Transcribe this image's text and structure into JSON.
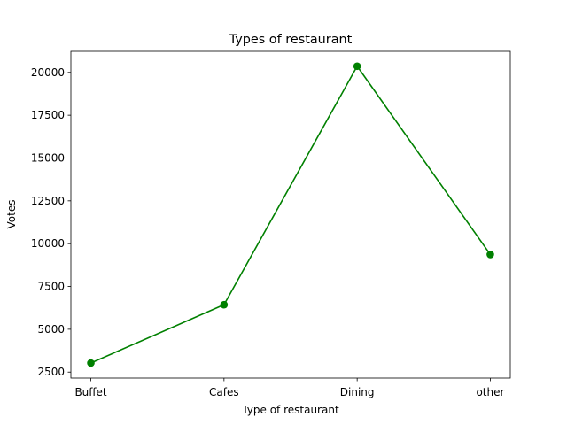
{
  "chart_data": {
    "type": "line",
    "title": "Types of restaurant",
    "xlabel": "Type of restaurant",
    "ylabel": "Votes",
    "categories": [
      "Buffet",
      "Cafes",
      "Dining",
      "other"
    ],
    "series": [
      {
        "values": [
          3028,
          6434,
          20363,
          9367
        ],
        "color": "#008000",
        "marker": "circle"
      }
    ],
    "ylim": [
      2150,
      21230
    ],
    "yticks": [
      2500,
      5000,
      7500,
      10000,
      12500,
      15000,
      17500,
      20000
    ],
    "grid": false,
    "legend": "none"
  }
}
